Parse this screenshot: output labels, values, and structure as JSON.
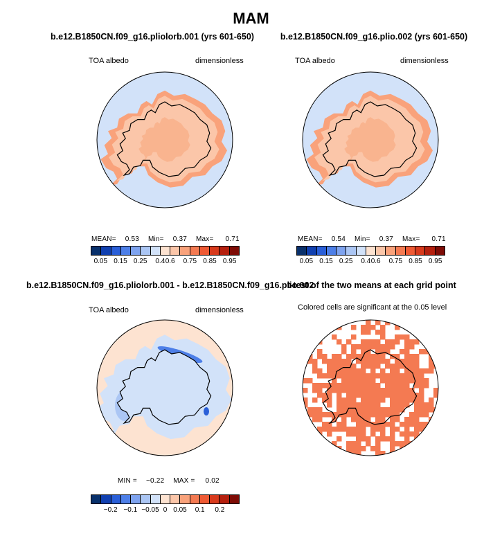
{
  "main_title": "MAM",
  "chart_data": [
    {
      "type": "heatmap",
      "title": "b.e12.B1850CN.f09_g16.pliolorb.001 (yrs 601-650)",
      "left_label": "TOA albedo",
      "right_label": "dimensionless",
      "stats": {
        "mean_label": "MEAN=",
        "mean": "0.53",
        "min_label": "Min=",
        "min": "0.37",
        "max_label": "Max=",
        "max": "0.71"
      },
      "colorbar": {
        "colors": [
          "#08306b",
          "#1040b0",
          "#2a5fd8",
          "#4d7fe8",
          "#7ea3ef",
          "#abc6f4",
          "#d2e2f9",
          "#fde3d1",
          "#fbc6a9",
          "#f9a27b",
          "#f47a52",
          "#ef5a34",
          "#d83a1c",
          "#b5200e",
          "#7e0c06"
        ],
        "ticks": [
          "0.05",
          "0.15",
          "0.25",
          "0.4",
          "0.6",
          "0.75",
          "0.85",
          "0.95"
        ]
      },
      "regions": [
        {
          "name": "ocean",
          "value": 0.45
        },
        {
          "name": "sea-ice-zone",
          "value": 0.6
        },
        {
          "name": "antarctica",
          "value": 0.68
        },
        {
          "name": "ice-interior",
          "value": 0.71
        }
      ]
    },
    {
      "type": "heatmap",
      "title": "b.e12.B1850CN.f09_g16.plio.002 (yrs 601-650)",
      "left_label": "TOA albedo",
      "right_label": "dimensionless",
      "stats": {
        "mean_label": "MEAN=",
        "mean": "0.54",
        "min_label": "Min=",
        "min": "0.37",
        "max_label": "Max=",
        "max": "0.71"
      },
      "colorbar": {
        "colors": [
          "#08306b",
          "#1040b0",
          "#2a5fd8",
          "#4d7fe8",
          "#7ea3ef",
          "#abc6f4",
          "#d2e2f9",
          "#fde3d1",
          "#fbc6a9",
          "#f9a27b",
          "#f47a52",
          "#ef5a34",
          "#d83a1c",
          "#b5200e",
          "#7e0c06"
        ],
        "ticks": [
          "0.05",
          "0.15",
          "0.25",
          "0.4",
          "0.6",
          "0.75",
          "0.85",
          "0.95"
        ]
      },
      "regions": [
        {
          "name": "ocean",
          "value": 0.45
        },
        {
          "name": "sea-ice-zone",
          "value": 0.6
        },
        {
          "name": "antarctica",
          "value": 0.68
        },
        {
          "name": "ice-interior",
          "value": 0.71
        }
      ]
    },
    {
      "type": "heatmap",
      "title": "b.e12.B1850CN.f09_g16.pliolorb.001 - b.e12.B1850CN.f09_g16.plio.002",
      "left_label": "TOA albedo",
      "right_label": "dimensionless",
      "stats": {
        "min_label": "MIN =",
        "min": "−0.22",
        "max_label": "MAX =",
        "max": "0.02"
      },
      "colorbar": {
        "colors": [
          "#08306b",
          "#1040b0",
          "#2a5fd8",
          "#4d7fe8",
          "#7ea3ef",
          "#abc6f4",
          "#d2e2f9",
          "#fde3d1",
          "#fbc6a9",
          "#f9a27b",
          "#f47a52",
          "#ef5a34",
          "#d83a1c",
          "#b5200e",
          "#7e0c06"
        ],
        "ticks": [
          "−0.2",
          "−0.1",
          "−0.05",
          "0",
          "0.05",
          "0.1",
          "0.2"
        ]
      },
      "regions": [
        {
          "name": "ocean",
          "value": 0.0
        },
        {
          "name": "southern-ocean",
          "value": -0.02
        },
        {
          "name": "antarctica",
          "value": -0.02
        },
        {
          "name": "ross-sea-band",
          "value": -0.15
        }
      ]
    },
    {
      "type": "heatmap",
      "title": "t-test of the two means at each grid point",
      "subtitle": "Colored cells are significant at the 0.05 level",
      "significance_level": 0.05,
      "significant_color": "#f47a52"
    }
  ]
}
